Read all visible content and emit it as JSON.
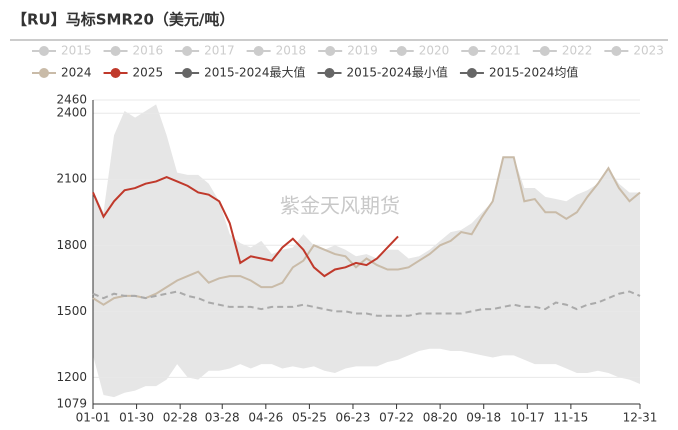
{
  "chart_data": {
    "type": "line",
    "title": "【RU】马标SMR20（美元/吨）",
    "watermark": "紫金天风期货",
    "x": [
      "01-01",
      "01-08",
      "01-15",
      "01-22",
      "01-29",
      "02-05",
      "02-12",
      "02-19",
      "02-26",
      "03-05",
      "03-12",
      "03-19",
      "03-26",
      "04-02",
      "04-09",
      "04-16",
      "04-23",
      "04-30",
      "05-07",
      "05-14",
      "05-21",
      "05-28",
      "06-04",
      "06-11",
      "06-18",
      "06-25",
      "07-02",
      "07-09",
      "07-16",
      "07-23",
      "07-30",
      "08-06",
      "08-13",
      "08-20",
      "08-27",
      "09-03",
      "09-10",
      "09-17",
      "09-24",
      "10-01",
      "10-08",
      "10-15",
      "10-22",
      "10-29",
      "11-05",
      "11-12",
      "11-19",
      "11-26",
      "12-03",
      "12-10",
      "12-17",
      "12-24",
      "12-31"
    ],
    "xlim": [
      "01-01",
      "12-31"
    ],
    "xticks": [
      "01-01",
      "01-30",
      "02-28",
      "03-28",
      "04-26",
      "05-25",
      "06-23",
      "07-22",
      "08-20",
      "09-18",
      "10-17",
      "11-15",
      "12-31"
    ],
    "ylim": [
      1079,
      2460
    ],
    "yticks": [
      1079,
      1200,
      1500,
      1800,
      2100,
      2400,
      2460
    ],
    "grid": true,
    "legend": "top",
    "series": [
      {
        "name": "2015",
        "color": "#cccccc",
        "visible": false
      },
      {
        "name": "2016",
        "color": "#cccccc",
        "visible": false
      },
      {
        "name": "2017",
        "color": "#cccccc",
        "visible": false
      },
      {
        "name": "2018",
        "color": "#cccccc",
        "visible": false
      },
      {
        "name": "2019",
        "color": "#cccccc",
        "visible": false
      },
      {
        "name": "2020",
        "color": "#cccccc",
        "visible": false
      },
      {
        "name": "2021",
        "color": "#cccccc",
        "visible": false
      },
      {
        "name": "2022",
        "color": "#cccccc",
        "visible": false
      },
      {
        "name": "2023",
        "color": "#cccccc",
        "visible": false
      },
      {
        "name": "2024",
        "color": "#c9bba8",
        "visible": true,
        "values": [
          1560,
          1530,
          1560,
          1570,
          1570,
          1560,
          1580,
          1610,
          1640,
          1660,
          1680,
          1630,
          1650,
          1660,
          1660,
          1640,
          1610,
          1610,
          1630,
          1700,
          1730,
          1800,
          1780,
          1760,
          1750,
          1700,
          1740,
          1710,
          1690,
          1690,
          1700,
          1730,
          1760,
          1800,
          1820,
          1860,
          1850,
          1930,
          2000,
          2200,
          2200,
          2000,
          2010,
          1950,
          1950,
          1920,
          1950,
          2020,
          2080,
          2150,
          2060,
          2000,
          2040
        ]
      },
      {
        "name": "2025",
        "color": "#c0392b",
        "visible": true,
        "values": [
          2040,
          1930,
          2000,
          2050,
          2060,
          2080,
          2090,
          2110,
          2090,
          2070,
          2040,
          2030,
          2000,
          1900,
          1720,
          1750,
          1740,
          1730,
          1790,
          1830,
          1780,
          1700,
          1660,
          1690,
          1700,
          1720,
          1710,
          1740,
          1790,
          1840,
          null,
          null,
          null,
          null,
          null,
          null,
          null,
          null,
          null,
          null,
          null,
          null,
          null,
          null,
          null,
          null,
          null,
          null,
          null,
          null,
          null,
          null,
          null
        ]
      },
      {
        "name": "2015-2024最大值",
        "color": "#666666",
        "visible": true,
        "fill": "#e6e6e6",
        "values": [
          2050,
          1950,
          2300,
          2410,
          2380,
          2410,
          2440,
          2300,
          2130,
          2120,
          2120,
          2080,
          2000,
          1850,
          1810,
          1790,
          1820,
          1760,
          1780,
          1790,
          1850,
          1800,
          1780,
          1800,
          1780,
          1750,
          1760,
          1740,
          1780,
          1780,
          1740,
          1750,
          1780,
          1820,
          1860,
          1870,
          1900,
          1950,
          2000,
          2200,
          2200,
          2060,
          2060,
          2020,
          2010,
          2000,
          2030,
          2050,
          2080,
          2150,
          2080,
          2040,
          2040
        ]
      },
      {
        "name": "2015-2024最小值",
        "color": "#666666",
        "visible": true,
        "fill": "#ffffff",
        "values": [
          1300,
          1120,
          1110,
          1130,
          1140,
          1160,
          1160,
          1190,
          1260,
          1200,
          1190,
          1230,
          1230,
          1240,
          1260,
          1240,
          1260,
          1260,
          1240,
          1250,
          1240,
          1250,
          1230,
          1220,
          1240,
          1250,
          1250,
          1250,
          1270,
          1280,
          1300,
          1320,
          1330,
          1330,
          1320,
          1320,
          1310,
          1300,
          1290,
          1300,
          1300,
          1280,
          1260,
          1260,
          1260,
          1240,
          1220,
          1220,
          1230,
          1220,
          1200,
          1190,
          1170
        ]
      },
      {
        "name": "2015-2024均值",
        "color": "#666666",
        "visible": true,
        "dash": true,
        "line_color": "#aaaaaa",
        "values": [
          1580,
          1560,
          1580,
          1570,
          1570,
          1560,
          1570,
          1580,
          1590,
          1570,
          1560,
          1540,
          1530,
          1520,
          1520,
          1520,
          1510,
          1520,
          1520,
          1520,
          1530,
          1520,
          1510,
          1500,
          1500,
          1490,
          1490,
          1480,
          1480,
          1480,
          1480,
          1490,
          1490,
          1490,
          1490,
          1490,
          1500,
          1510,
          1510,
          1520,
          1530,
          1520,
          1520,
          1510,
          1540,
          1530,
          1510,
          1530,
          1540,
          1560,
          1580,
          1590,
          1570
        ]
      }
    ]
  }
}
